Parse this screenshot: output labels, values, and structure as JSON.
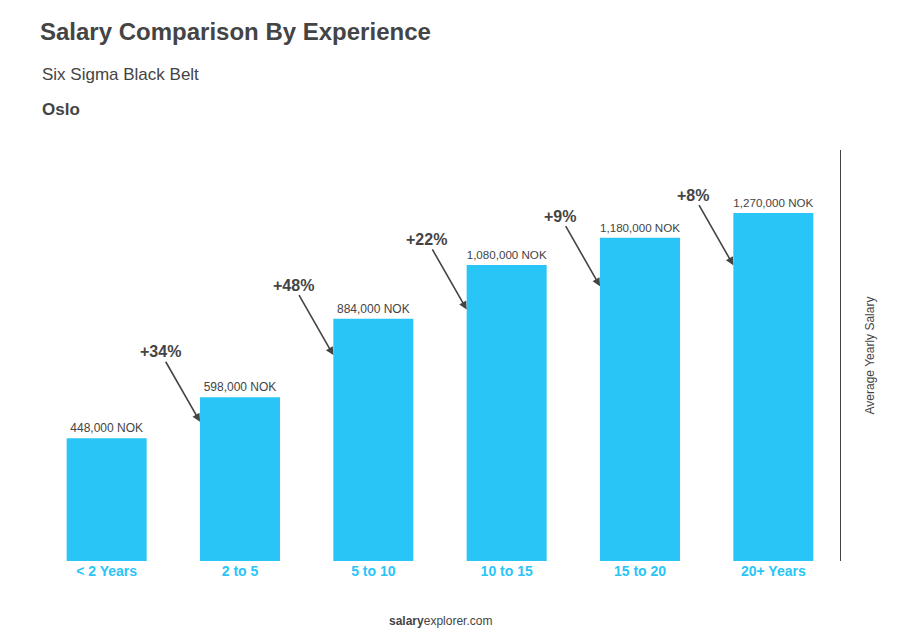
{
  "chart_data": {
    "type": "bar",
    "title": "Salary Comparison By Experience",
    "subtitle": "Six Sigma Black Belt",
    "city": "Oslo",
    "categories": [
      "< 2 Years",
      "2 to 5",
      "5 to 10",
      "10 to 15",
      "15 to 20",
      "20+ Years"
    ],
    "values": [
      448000,
      598000,
      884000,
      1080000,
      1180000,
      1270000
    ],
    "value_labels": [
      "448,000 NOK",
      "598,000 NOK",
      "884,000 NOK",
      "1,080,000 NOK",
      "1,180,000 NOK",
      "1,270,000 NOK"
    ],
    "data_labels": true,
    "annotations": [
      "+34%",
      "+48%",
      "+22%",
      "+9%",
      "+8%"
    ],
    "color": "#29C5F6",
    "ylabel": "Average Yearly Salary",
    "ylim": [
      0,
      1500000
    ],
    "tick_labels": "x",
    "grid": false,
    "source_bold": "salary",
    "source_rest": "explorer.com"
  }
}
